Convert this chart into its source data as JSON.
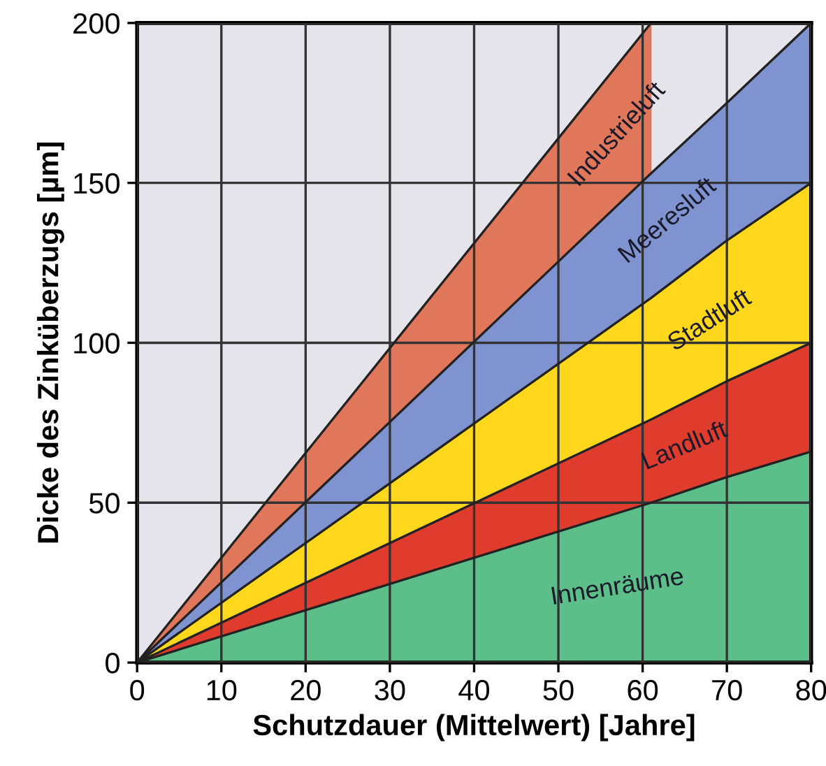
{
  "chart_data": {
    "type": "area",
    "stacked": true,
    "xlabel": "Schutzdauer (Mittelwert) [Jahre]",
    "ylabel": "Dicke des Zinküberzugs [µm]",
    "x": [
      0,
      61,
      70,
      80
    ],
    "series": [
      {
        "name": "Innenräume",
        "color": "#5cbf8a",
        "values": [
          0,
          50,
          58,
          66
        ]
      },
      {
        "name": "Landluft",
        "color": "#e03c2e",
        "values": [
          0,
          26,
          30,
          34
        ]
      },
      {
        "name": "Stadtluft",
        "color": "#ffd81e",
        "values": [
          0,
          38,
          44,
          50
        ]
      },
      {
        "name": "Meeresluft",
        "color": "#7f93d0",
        "values": [
          0,
          39,
          43,
          50
        ]
      },
      {
        "name": "Industrieluft",
        "color": "#e0765a",
        "x": [
          0,
          61
        ],
        "values": [
          0,
          47
        ]
      }
    ],
    "xlim": [
      0,
      80
    ],
    "xticks": [
      0,
      10,
      20,
      30,
      40,
      50,
      60,
      70,
      80
    ],
    "ylim": [
      0,
      200
    ],
    "yticks": [
      0,
      50,
      100,
      150,
      200
    ],
    "grid": true,
    "legend": false
  }
}
